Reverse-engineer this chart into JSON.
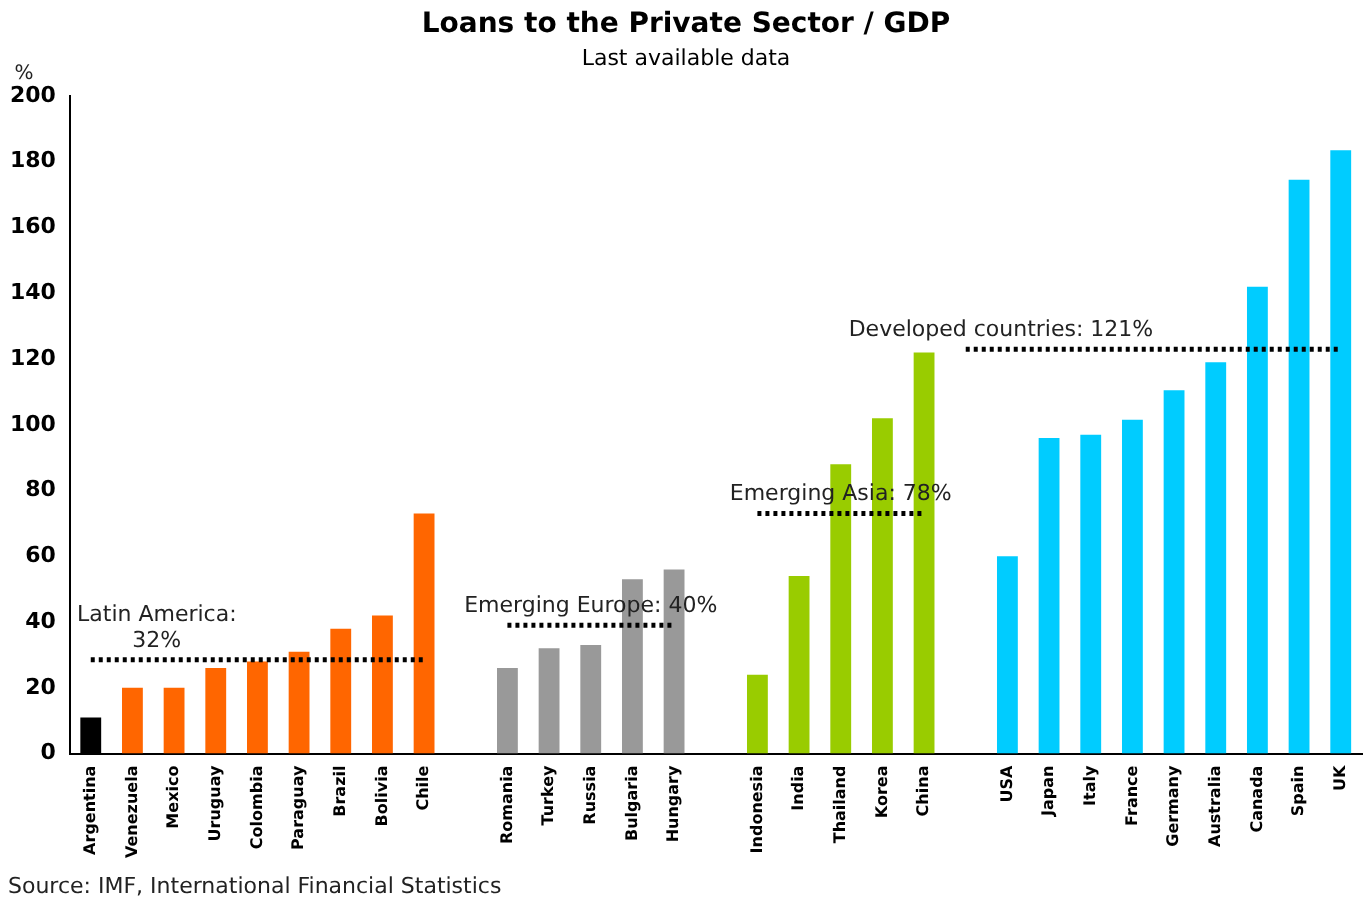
{
  "chart_data": {
    "type": "bar",
    "title": "Loans to the Private Sector / GDP",
    "subtitle": "Last available data",
    "ylabel": "%",
    "categories": [
      "Argentina",
      "Venezuela",
      "Mexico",
      "Uruguay",
      "Colombia",
      "Paraguay",
      "Brazil",
      "Bolivia",
      "Chile",
      null,
      "Romania",
      "Turkey",
      "Russia",
      "Bulgaria",
      "Hungary",
      null,
      "Indonesia",
      "India",
      "Thailand",
      "Korea",
      "China",
      null,
      "USA",
      "Japan",
      "Italy",
      "France",
      "Germany",
      "Australia",
      "Canada",
      "Spain",
      "UK"
    ],
    "series": [
      {
        "values": [
          11,
          20,
          20,
          26,
          28,
          31,
          38,
          42,
          73,
          null,
          26,
          32,
          33,
          53,
          56,
          null,
          24,
          54,
          88,
          102,
          122,
          null,
          60,
          96,
          97,
          101.5,
          110.5,
          119,
          142,
          174.5,
          183.5
        ],
        "colors": [
          "#000000",
          "#ff6600",
          "#ff6600",
          "#ff6600",
          "#ff6600",
          "#ff6600",
          "#ff6600",
          "#ff6600",
          "#ff6600",
          null,
          "#999999",
          "#999999",
          "#999999",
          "#999999",
          "#999999",
          null,
          "#99cc00",
          "#99cc00",
          "#99cc00",
          "#99cc00",
          "#99cc00",
          null,
          "#00ccff",
          "#00ccff",
          "#00ccff",
          "#00ccff",
          "#00ccff",
          "#00ccff",
          "#00ccff",
          "#00ccff",
          "#00ccff"
        ]
      },
      {
        "type": "line",
        "color": "#000000",
        "line_style": "dotted",
        "values": [
          28.5,
          28.5,
          28.5,
          28.5,
          28.5,
          28.5,
          28.5,
          28.5,
          28.5,
          null,
          null,
          null,
          null,
          null,
          null,
          null,
          null,
          null,
          null,
          null,
          null,
          null,
          null,
          null,
          null,
          null,
          null,
          null,
          null,
          null,
          null
        ]
      },
      {
        "type": "line",
        "color": "#000000",
        "line_style": "dotted",
        "values": [
          null,
          null,
          null,
          null,
          null,
          null,
          null,
          null,
          null,
          null,
          39,
          39,
          39,
          39,
          39,
          null,
          null,
          null,
          null,
          null,
          null,
          null,
          null,
          null,
          null,
          null,
          null,
          null,
          null,
          null,
          null
        ]
      },
      {
        "type": "line",
        "color": "#000000",
        "line_style": "dotted",
        "values": [
          null,
          null,
          null,
          null,
          null,
          null,
          null,
          null,
          null,
          null,
          null,
          null,
          null,
          null,
          null,
          null,
          73,
          73,
          73,
          73,
          73,
          null,
          null,
          null,
          null,
          null,
          null,
          null,
          null,
          null,
          null
        ]
      },
      {
        "type": "line",
        "color": "#000000",
        "line_style": "dotted",
        "values": [
          null,
          null,
          null,
          null,
          null,
          null,
          null,
          null,
          null,
          null,
          null,
          null,
          null,
          null,
          null,
          null,
          null,
          null,
          null,
          null,
          null,
          123,
          123,
          123,
          123,
          123,
          123,
          123,
          123,
          123,
          123
        ]
      }
    ],
    "ylim": [
      0,
      200
    ],
    "yticks": [
      0,
      20,
      40,
      60,
      80,
      100,
      120,
      140,
      160,
      180,
      200
    ],
    "grid": false,
    "legend": false,
    "annotations": [
      {
        "text": "Latin America: 32%",
        "x": "Uruguay",
        "y": 28.5
      },
      {
        "text": "Emerging Europe: 40%",
        "x": "Russia",
        "y": 39
      },
      {
        "text": "Emerging Asia: 78%",
        "x": "Thailand",
        "y": 73
      },
      {
        "text": "Developed countries: 121%",
        "x": "France",
        "y": 123
      },
      "Source: IMF, International Financial Statistics"
    ]
  }
}
